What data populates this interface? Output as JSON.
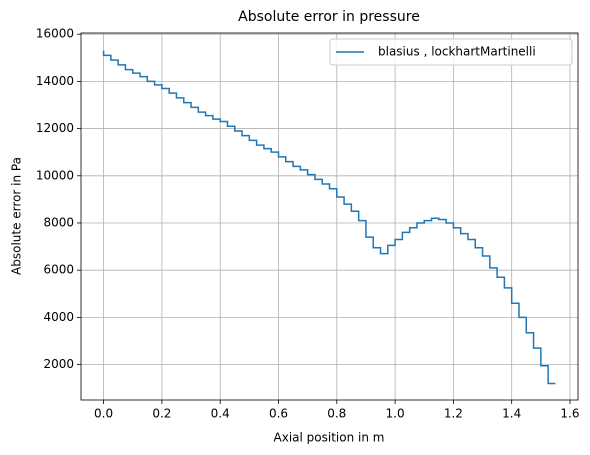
{
  "chart_data": {
    "type": "step",
    "title": "Absolute error in pressure",
    "xlabel": "Axial position in m",
    "ylabel": "Absolute error in Pa",
    "x": [
      0,
      0.025,
      0.05,
      0.075,
      0.1,
      0.125,
      0.15,
      0.175,
      0.2,
      0.225,
      0.25,
      0.275,
      0.3,
      0.325,
      0.35,
      0.375,
      0.4,
      0.425,
      0.45,
      0.475,
      0.5,
      0.525,
      0.55,
      0.575,
      0.6,
      0.625,
      0.65,
      0.675,
      0.7,
      0.725,
      0.75,
      0.775,
      0.8,
      0.825,
      0.85,
      0.875,
      0.9,
      0.925,
      0.95,
      0.975,
      1.0,
      1.025,
      1.05,
      1.075,
      1.1,
      1.125,
      1.15,
      1.175,
      1.2,
      1.225,
      1.25,
      1.275,
      1.3,
      1.325,
      1.35,
      1.375,
      1.4,
      1.425,
      1.45,
      1.475,
      1.5,
      1.525,
      1.55
    ],
    "series": [
      {
        "name": "blasius , lockhartMartinelli",
        "color": "#1f77b4",
        "values": [
          15300,
          15100,
          14900,
          14700,
          14500,
          14350,
          14200,
          14000,
          13850,
          13700,
          13500,
          13300,
          13100,
          12900,
          12700,
          12550,
          12400,
          12300,
          12100,
          11900,
          11700,
          11500,
          11300,
          11150,
          11000,
          10800,
          10600,
          10400,
          10250,
          10050,
          9850,
          9650,
          9450,
          9100,
          8800,
          8500,
          8100,
          7400,
          6950,
          6700,
          7050,
          7300,
          7600,
          7800,
          8000,
          8100,
          8200,
          8150,
          8000,
          7800,
          7550,
          7300,
          6950,
          6600,
          6100,
          5700,
          5250,
          4600,
          4000,
          3350,
          2700,
          1950,
          1200
        ]
      }
    ],
    "xlim": [
      -0.0775,
      1.6275
    ],
    "xticks": [
      {
        "value": 0,
        "label": "0.0"
      },
      0.2,
      0.4,
      0.6,
      0.8,
      {
        "value": 1,
        "label": "1.0"
      },
      1.2,
      1.4,
      1.6
    ],
    "ylim": [
      500,
      16050
    ],
    "yticks": [
      2000,
      4000,
      6000,
      8000,
      10000,
      12000,
      14000,
      16000
    ],
    "grid": true,
    "legend": "upper right"
  }
}
